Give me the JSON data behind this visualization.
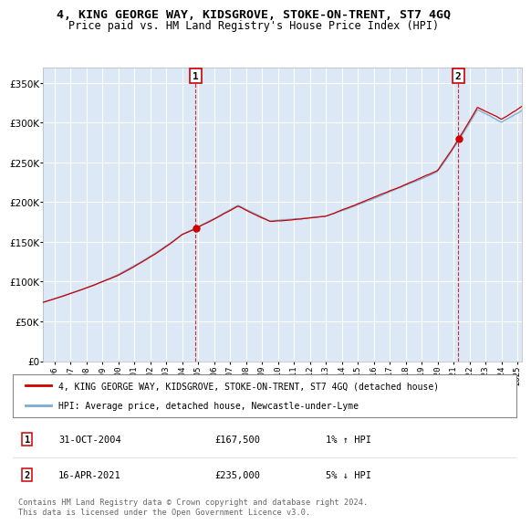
{
  "title": "4, KING GEORGE WAY, KIDSGROVE, STOKE-ON-TRENT, ST7 4GQ",
  "subtitle": "Price paid vs. HM Land Registry's House Price Index (HPI)",
  "legend_label_red": "4, KING GEORGE WAY, KIDSGROVE, STOKE-ON-TRENT, ST7 4GQ (detached house)",
  "legend_label_blue": "HPI: Average price, detached house, Newcastle-under-Lyme",
  "footer": "Contains HM Land Registry data © Crown copyright and database right 2024.\nThis data is licensed under the Open Government Licence v3.0.",
  "annotation1_date": "31-OCT-2004",
  "annotation1_price": "£167,500",
  "annotation1_hpi": "1% ↑ HPI",
  "annotation1_year": 2004.83,
  "annotation1_value": 167500,
  "annotation2_date": "16-APR-2021",
  "annotation2_price": "£235,000",
  "annotation2_hpi": "5% ↓ HPI",
  "annotation2_year": 2021.29,
  "annotation2_value": 235000,
  "ylim": [
    0,
    370000
  ],
  "xlim_start": 1995.3,
  "xlim_end": 2025.3,
  "background_color": "#dce8f5",
  "plot_background": "#dce8f5",
  "grid_color": "#ffffff",
  "red_color": "#cc0000",
  "blue_color": "#7aadd4",
  "shade_color": "#ccdcee"
}
